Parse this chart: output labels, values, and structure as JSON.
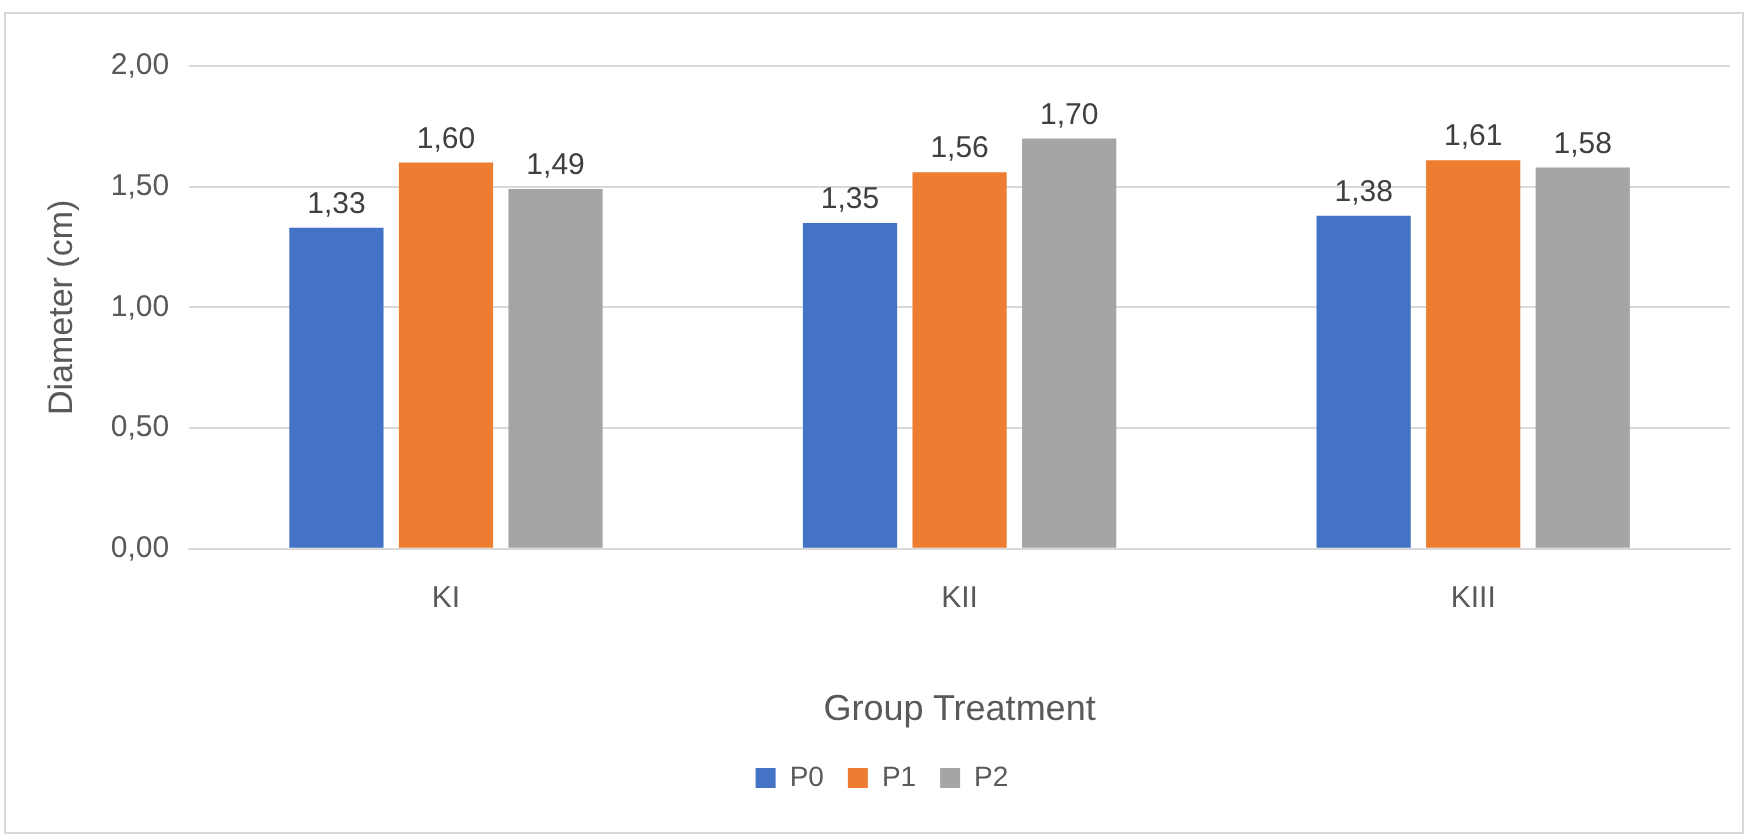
{
  "chart_data": {
    "type": "bar",
    "xlabel": "Group Treatment",
    "ylabel": "Diameter (cm)",
    "categories": [
      "KI",
      "KII",
      "KIII"
    ],
    "series": [
      {
        "name": "P0",
        "color": "#4472c4",
        "values": [
          1.33,
          1.35,
          1.38
        ],
        "value_labels": [
          "1,33",
          "1,35",
          "1,38"
        ]
      },
      {
        "name": "P1",
        "color": "#ed7d31",
        "values": [
          1.6,
          1.56,
          1.61
        ],
        "value_labels": [
          "1,60",
          "1,56",
          "1,61"
        ]
      },
      {
        "name": "P2",
        "color": "#a5a5a5",
        "values": [
          1.49,
          1.7,
          1.58
        ],
        "value_labels": [
          "1,49",
          "1,70",
          "1,58"
        ]
      }
    ],
    "ylim": [
      0,
      2
    ],
    "yticks": [
      {
        "value": 0,
        "label": "0,00"
      },
      {
        "value": 0.5,
        "label": "0,50"
      },
      {
        "value": 1,
        "label": "1,00"
      },
      {
        "value": 1.5,
        "label": "1,50"
      },
      {
        "value": 2,
        "label": "2,00"
      }
    ],
    "grid": "y",
    "legend": "bottom"
  }
}
